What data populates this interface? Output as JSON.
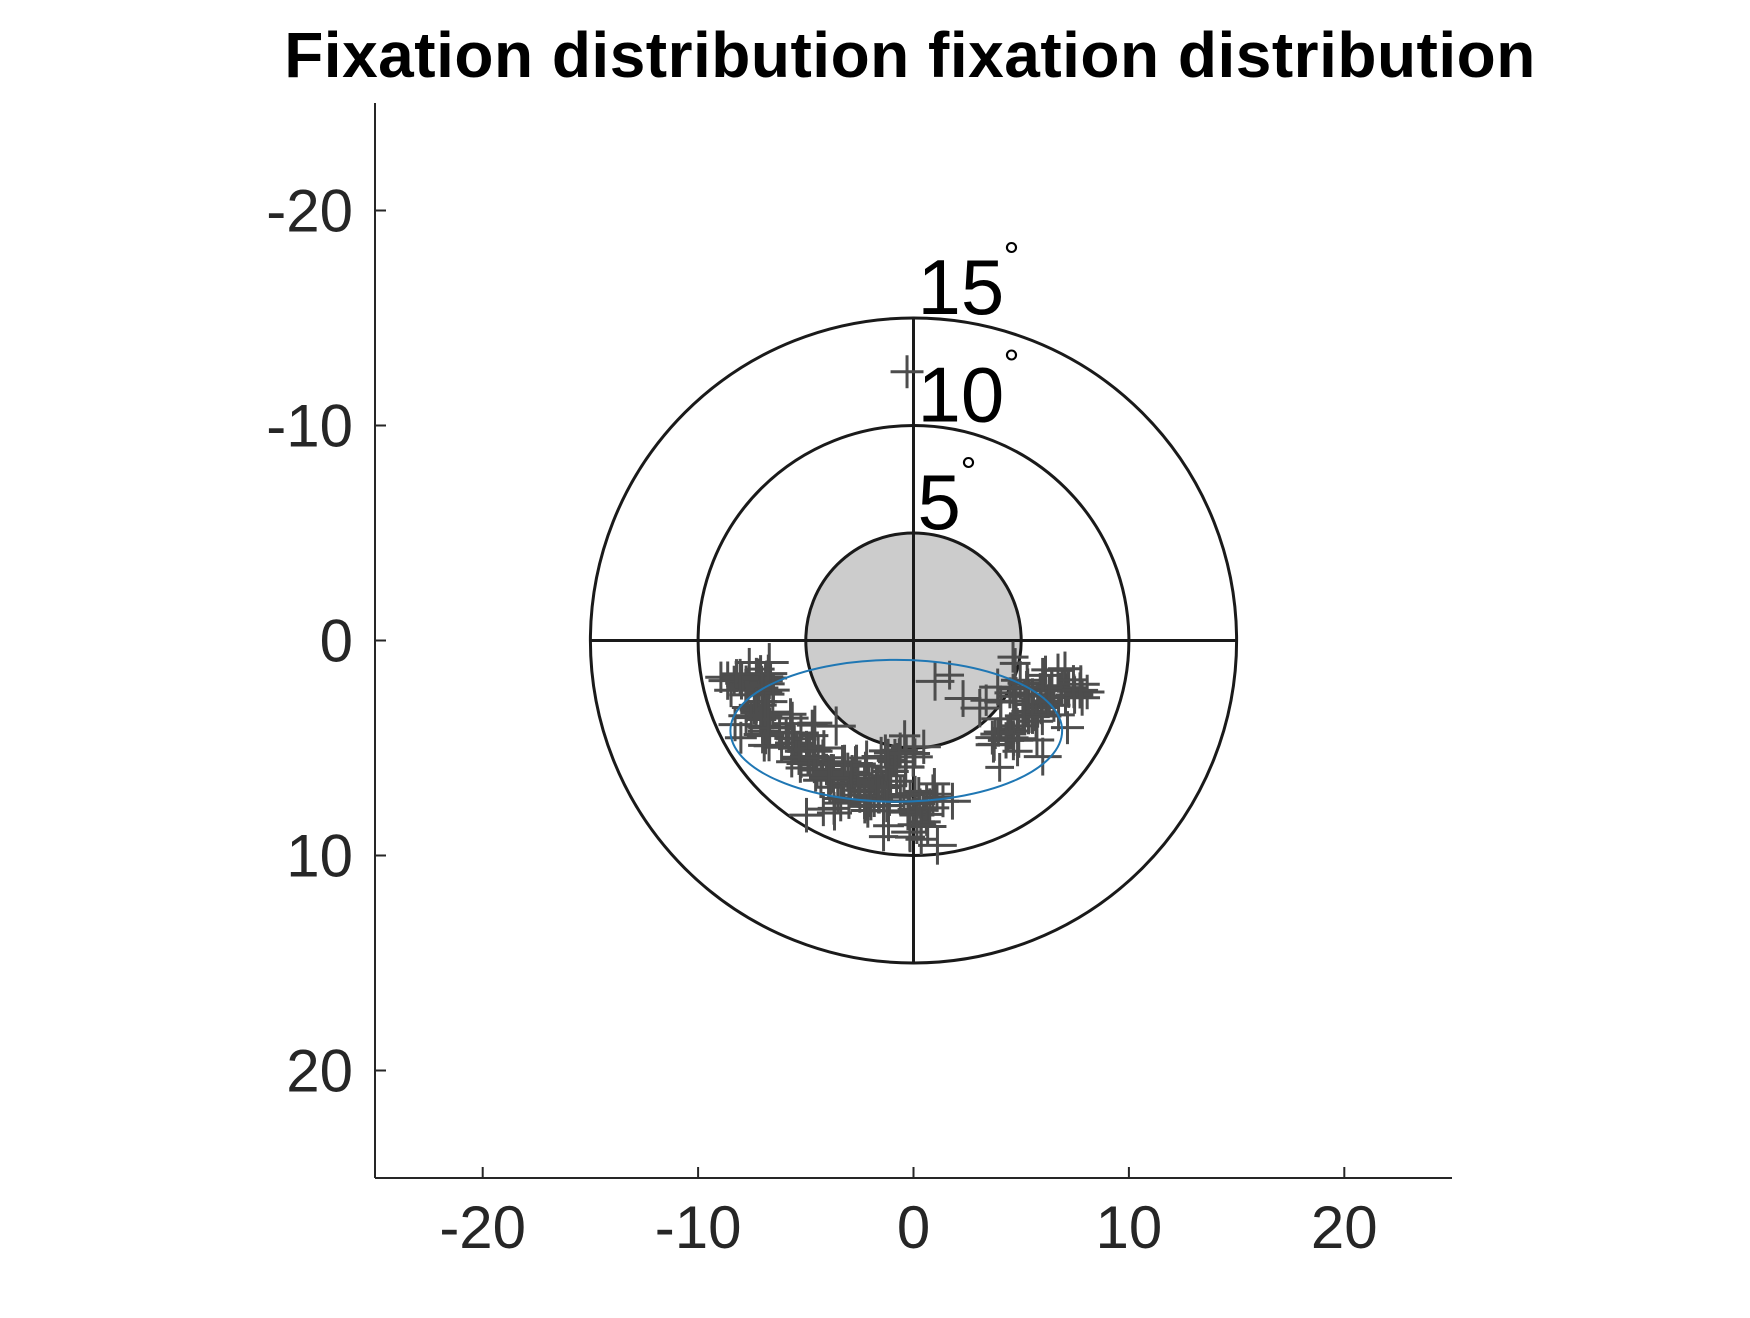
{
  "chart_data": {
    "type": "scatter",
    "title": "Fixation distribution fixation distribution",
    "xlabel": "",
    "ylabel": "",
    "xlim": [
      -25,
      25
    ],
    "ylim": [
      -25,
      25
    ],
    "y_axis_direction": "reversed",
    "grid": false,
    "x_ticks": [
      -20,
      -10,
      0,
      10,
      20
    ],
    "y_ticks": [
      -20,
      -10,
      0,
      10,
      20
    ],
    "x_tick_labels": [
      "-20",
      "-10",
      "0",
      "10",
      "20"
    ],
    "y_tick_labels": [
      "-20",
      "-10",
      "0",
      "10",
      "20"
    ],
    "rings": [
      {
        "radius": 5,
        "label": "5",
        "unit": "°",
        "fill": "#cccccc"
      },
      {
        "radius": 10,
        "label": "10",
        "unit": "°",
        "fill": "none"
      },
      {
        "radius": 15,
        "label": "15",
        "unit": "°",
        "fill": "none"
      }
    ],
    "crosshair_extent": 15,
    "ellipse": {
      "cx": -0.8,
      "cy": 4.2,
      "rx": 7.7,
      "ry": 3.3,
      "color": "#1f77b4"
    },
    "marker": "+",
    "marker_color": "#4d4d4d",
    "clusters": [
      {
        "cx": -7.5,
        "cy": 2.0,
        "spread": 1.0,
        "n": 30
      },
      {
        "cx": -6.8,
        "cy": 3.8,
        "spread": 1.2,
        "n": 35
      },
      {
        "cx": -5.0,
        "cy": 5.2,
        "spread": 1.0,
        "n": 25
      },
      {
        "cx": -3.0,
        "cy": 6.3,
        "spread": 1.1,
        "n": 30
      },
      {
        "cx": -1.8,
        "cy": 7.3,
        "spread": 1.3,
        "n": 35
      },
      {
        "cx": 0.4,
        "cy": 8.0,
        "spread": 1.0,
        "n": 25
      },
      {
        "cx": -0.5,
        "cy": 5.5,
        "spread": 0.8,
        "n": 15
      },
      {
        "cx": 5.0,
        "cy": 2.8,
        "spread": 1.4,
        "n": 40
      },
      {
        "cx": 6.6,
        "cy": 2.2,
        "spread": 0.9,
        "n": 20
      },
      {
        "cx": 4.5,
        "cy": 4.3,
        "spread": 0.9,
        "n": 15
      }
    ],
    "outlier_points": [
      {
        "x": -0.3,
        "y": -12.5
      },
      {
        "x": 1.0,
        "y": 1.9
      },
      {
        "x": 2.3,
        "y": 2.7
      },
      {
        "x": 4.0,
        "y": 5.9
      },
      {
        "x": 6.0,
        "y": 5.4
      }
    ]
  }
}
